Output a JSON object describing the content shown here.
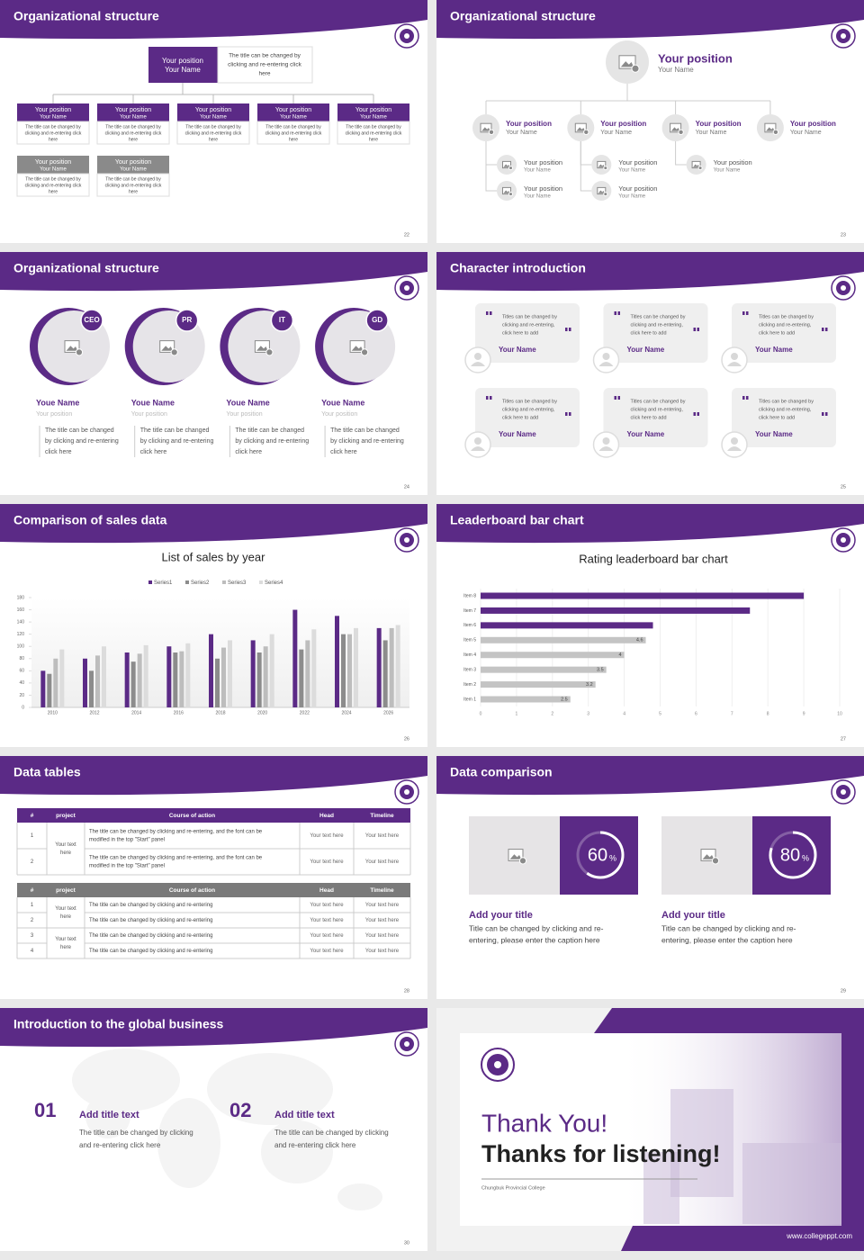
{
  "slides": [
    {
      "title": "Organizational structure",
      "page": "22",
      "head": {
        "position": "Your position",
        "name": "Your Name",
        "note": [
          "The title can be changed by",
          "clicking and re-entering click",
          "here"
        ]
      },
      "boxes": [
        {
          "position": "Your position",
          "name": "Your Name",
          "text": [
            "The title can be changed by",
            "clicking and re-entering click",
            "here"
          ]
        },
        {
          "position": "Your position",
          "name": "Your Name",
          "text": [
            "The title can be changed by",
            "clicking and re-entering click",
            "here"
          ]
        },
        {
          "position": "Your position",
          "name": "Your Name",
          "text": [
            "The title can be changed by",
            "clicking and re-entering click",
            "here"
          ]
        },
        {
          "position": "Your position",
          "name": "Your Name",
          "text": [
            "The title can be changed by",
            "clicking and re-entering click",
            "here"
          ]
        },
        {
          "position": "Your position",
          "name": "Your Name",
          "text": [
            "The title can be changed by",
            "clicking and re-entering click",
            "here"
          ]
        },
        {
          "position": "Your position",
          "name": "Your Name",
          "text": [
            "The title can be changed by",
            "clicking and re-entering click",
            "here"
          ]
        },
        {
          "position": "Your position",
          "name": "Your Name",
          "text": [
            "The title can be changed by",
            "clicking and re-entering click",
            "here"
          ]
        }
      ]
    },
    {
      "title": "Organizational structure",
      "page": "23",
      "head": {
        "position": "Your position",
        "name": "Your Name"
      },
      "members": [
        {
          "position": "Your position",
          "name": "Your Name",
          "team": [
            {
              "position": "Your position",
              "name": "Your Name"
            },
            {
              "position": "Your position",
              "name": "Your Name"
            }
          ]
        },
        {
          "position": "Your position",
          "name": "Your Name",
          "team": [
            {
              "position": "Your position",
              "name": "Your Name"
            },
            {
              "position": "Your position",
              "name": "Your Name"
            }
          ]
        },
        {
          "position": "Your position",
          "name": "Your Name",
          "team": [
            {
              "position": "Your position",
              "name": "Your Name"
            }
          ]
        },
        {
          "position": "Your position",
          "name": "Your Name",
          "team": []
        }
      ]
    },
    {
      "title": "Organizational structure",
      "page": "24",
      "people": [
        {
          "badge": "CEO",
          "name": "Youe Name",
          "position": "Your position",
          "text": [
            "The title can be changed",
            "by clicking and re-entering",
            "click here"
          ]
        },
        {
          "badge": "PR",
          "name": "Youe Name",
          "position": "Your position",
          "text": [
            "The title can be changed",
            "by clicking and re-entering",
            "click here"
          ]
        },
        {
          "badge": "IT",
          "name": "Youe Name",
          "position": "Your position",
          "text": [
            "The title can be changed",
            "by clicking and re-entering",
            "click here"
          ]
        },
        {
          "badge": "GD",
          "name": "Youe Name",
          "position": "Your position",
          "text": [
            "The title can be changed",
            "by clicking and re-entering",
            "click here"
          ]
        }
      ]
    },
    {
      "title": "Character introduction",
      "page": "25",
      "cards": [
        {
          "quote": [
            "Titles can be changed by",
            "clicking and re-entering,",
            "click here to add"
          ],
          "name": "Your Name"
        },
        {
          "quote": [
            "Titles can be changed by",
            "clicking and re-entering,",
            "click here to add"
          ],
          "name": "Your Name"
        },
        {
          "quote": [
            "Titles can be changed by",
            "clicking and re-entering,",
            "click here to add"
          ],
          "name": "Your Name"
        },
        {
          "quote": [
            "Titles can be changed by",
            "clicking and re-entering,",
            "click here to add"
          ],
          "name": "Your Name"
        },
        {
          "quote": [
            "Titles can be changed by",
            "clicking and re-entering,",
            "click here to add"
          ],
          "name": "Your Name"
        },
        {
          "quote": [
            "Titles can be changed by",
            "clicking and re-entering,",
            "click here to add"
          ],
          "name": "Your Name"
        }
      ]
    },
    {
      "title": "Comparison of sales data",
      "page": "26",
      "chart_data": {
        "type": "bar",
        "title": "List of sales by year",
        "categories": [
          "2010",
          "2012",
          "2014",
          "2016",
          "2018",
          "2020",
          "2022",
          "2024",
          "2026"
        ],
        "series": [
          {
            "name": "Series1",
            "color": "#5b2a86",
            "values": [
              60,
              80,
              90,
              100,
              120,
              110,
              160,
              150,
              130
            ]
          },
          {
            "name": "Series2",
            "color": "#8c8c8c",
            "values": [
              55,
              60,
              75,
              90,
              80,
              90,
              95,
              120,
              110
            ]
          },
          {
            "name": "Series3",
            "color": "#bdbdbd",
            "values": [
              80,
              85,
              88,
              92,
              98,
              100,
              110,
              120,
              130
            ]
          },
          {
            "name": "Series4",
            "color": "#dcdcdc",
            "values": [
              95,
              100,
              102,
              105,
              110,
              120,
              128,
              130,
              135
            ]
          }
        ],
        "ylim": [
          0,
          180
        ],
        "yticks": [
          0,
          20,
          40,
          60,
          80,
          100,
          120,
          140,
          160,
          180
        ],
        "legend": "top"
      }
    },
    {
      "title": "Leaderboard bar chart",
      "page": "27",
      "chart_data": {
        "type": "bar",
        "horizontal": true,
        "title": "Rating leaderboard bar chart",
        "categories": [
          "Item 1",
          "Item 2",
          "Item 3",
          "Item 4",
          "Item 5",
          "Item 6",
          "Item 7",
          "Item 8"
        ],
        "values": [
          2.5,
          3.2,
          3.5,
          4,
          4.6,
          4.8,
          7.5,
          9
        ],
        "value_labels": [
          "2.5",
          "3.2",
          "3.5",
          "4",
          "4.6",
          null,
          null,
          null
        ],
        "colors": [
          "#c4c4c4",
          "#c4c4c4",
          "#c4c4c4",
          "#c4c4c4",
          "#c4c4c4",
          "#5b2a86",
          "#5b2a86",
          "#5b2a86"
        ],
        "xlim": [
          0,
          10
        ],
        "xticks": [
          0,
          1,
          2,
          3,
          4,
          5,
          6,
          7,
          8,
          9,
          10
        ],
        "grid": true
      }
    },
    {
      "title": "Data tables",
      "page": "28",
      "tables": [
        {
          "columns": [
            "#",
            "project",
            "Course of action",
            "Head",
            "Timeline"
          ],
          "groups": [
            {
              "project": [
                "Your text",
                "here"
              ],
              "rows": [
                {
                  "num": "1",
                  "action": [
                    "The title can be changed by clicking and re-entering, and the font can be",
                    "modified in the top \"Start\" panel"
                  ],
                  "head": "Your text here",
                  "timeline": "Your text here"
                },
                {
                  "num": "2",
                  "action": [
                    "The title can be changed by clicking and re-entering, and the font can be",
                    "modified in the top \"Start\" panel"
                  ],
                  "head": "Your text here",
                  "timeline": "Your text here"
                }
              ]
            }
          ]
        },
        {
          "columns": [
            "#",
            "project",
            "Course of action",
            "Head",
            "Timeline"
          ],
          "groups": [
            {
              "project": [
                "Your text",
                "here"
              ],
              "rows": [
                {
                  "num": "1",
                  "action": [
                    "The title can be changed by clicking and re-entering"
                  ],
                  "head": "Your text here",
                  "timeline": "Your text here"
                },
                {
                  "num": "2",
                  "action": [
                    "The title can be changed by clicking and re-entering"
                  ],
                  "head": "Your text here",
                  "timeline": "Your text here"
                }
              ]
            },
            {
              "project": [
                "Your text",
                "here"
              ],
              "rows": [
                {
                  "num": "3",
                  "action": [
                    "The title can be changed by clicking and re-entering"
                  ],
                  "head": "Your text here",
                  "timeline": "Your text here"
                },
                {
                  "num": "4",
                  "action": [
                    "The title can be changed by clicking and re-entering"
                  ],
                  "head": "Your text here",
                  "timeline": "Your text here"
                }
              ]
            }
          ]
        }
      ]
    },
    {
      "title": "Data comparison",
      "page": "29",
      "items": [
        {
          "value": 60,
          "unit": "%",
          "title": "Add your title",
          "text": [
            "Title can be changed by clicking and re-",
            "entering, please enter the caption here"
          ]
        },
        {
          "value": 80,
          "unit": "%",
          "title": "Add your title",
          "text": [
            "Title can be changed by clicking and re-",
            "entering, please enter the caption here"
          ]
        }
      ]
    },
    {
      "title": "Introduction to the global business",
      "page": "30",
      "items": [
        {
          "number": "01",
          "title": "Add title text",
          "text": [
            "The title can be changed by clicking",
            "and re-entering click here"
          ]
        },
        {
          "number": "02",
          "title": "Add title text",
          "text": [
            "The title can be changed by clicking",
            "and re-entering click here"
          ]
        }
      ]
    },
    {
      "title": "Thank You!",
      "subtitle": "Thanks for listening!",
      "college": "Chungbuk Provincial College",
      "url": "www.collegeppt.com"
    }
  ]
}
